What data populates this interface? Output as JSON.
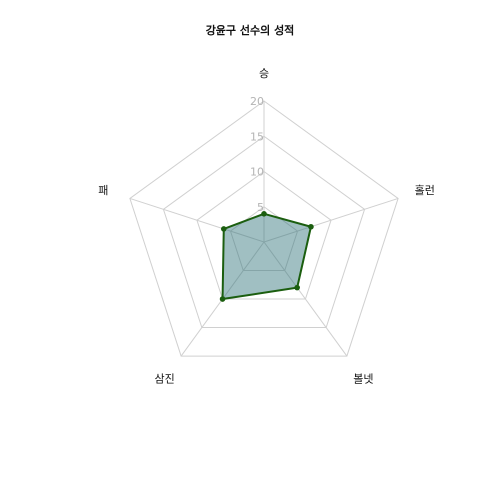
{
  "chart_data": {
    "type": "radar",
    "title": "강윤구 선수의 성적",
    "categories": [
      "승",
      "홀런",
      "볼넷",
      "삼진",
      "패"
    ],
    "ticks": [
      5,
      10,
      15,
      20
    ],
    "ylim": [
      0,
      20
    ],
    "grid": true,
    "series": [
      {
        "values": [
          4,
          7,
          8,
          10,
          6
        ]
      }
    ],
    "colors": {
      "series_line": "#1b5e0f",
      "series_fill": "#2c7077",
      "grid": "#d0d0d0",
      "tick_text": "#b4b4b4"
    }
  }
}
